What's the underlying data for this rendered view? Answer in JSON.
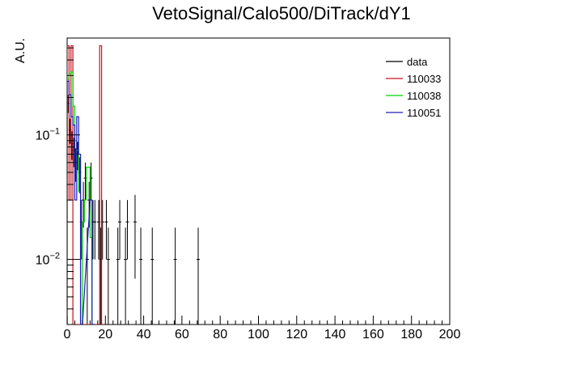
{
  "chart_data": {
    "type": "histogram",
    "title": "VetoSignal/Calo500/DiTrack/dY1",
    "xlabel": "",
    "ylabel": "A.U.",
    "xlim": [
      0,
      200
    ],
    "ylim": [
      0.003,
      0.6
    ],
    "yscale": "log",
    "grid": false,
    "legend_position": "top-right",
    "x_ticks": [
      0,
      20,
      40,
      60,
      80,
      100,
      120,
      140,
      160,
      180,
      200
    ],
    "x_tick_labels": [
      "0",
      "20",
      "40",
      "60",
      "80",
      "100",
      "120",
      "140",
      "160",
      "180",
      "200"
    ],
    "y_ticks": [
      0.01,
      0.1
    ],
    "y_tick_labels": [
      {
        "base": "10",
        "exp": "−2"
      },
      {
        "base": "10",
        "exp": "−1"
      }
    ],
    "series": [
      {
        "name": "data",
        "color": "#000000",
        "style": "points-with-errors",
        "points": [
          {
            "x": 0.5,
            "y": 0.18,
            "err": 0.03
          },
          {
            "x": 1.5,
            "y": 0.11,
            "err": 0.025
          },
          {
            "x": 2.5,
            "y": 0.085,
            "err": 0.022
          },
          {
            "x": 3.5,
            "y": 0.075,
            "err": 0.02
          },
          {
            "x": 4.5,
            "y": 0.06,
            "err": 0.018
          },
          {
            "x": 5.5,
            "y": 0.07,
            "err": 0.018
          },
          {
            "x": 6.5,
            "y": 0.05,
            "err": 0.016
          },
          {
            "x": 7.5,
            "y": 0.02,
            "err": 0.01
          },
          {
            "x": 8.5,
            "y": 0.03,
            "err": 0.012
          },
          {
            "x": 9.5,
            "y": 0.045,
            "err": 0.015
          },
          {
            "x": 10.5,
            "y": 0.01,
            "err": 0.008
          },
          {
            "x": 11.5,
            "y": 0.03,
            "err": 0.012
          },
          {
            "x": 12.5,
            "y": 0.045,
            "err": 0.015
          },
          {
            "x": 13.5,
            "y": 0.02,
            "err": 0.01
          },
          {
            "x": 14.5,
            "y": 0.02,
            "err": 0.01
          },
          {
            "x": 16.5,
            "y": 0.02,
            "err": 0.01
          },
          {
            "x": 17.5,
            "y": 0.01,
            "err": 0.008
          },
          {
            "x": 18.5,
            "y": 0.02,
            "err": 0.01
          },
          {
            "x": 20.5,
            "y": 0.02,
            "err": 0.01
          },
          {
            "x": 21.5,
            "y": 0.01,
            "err": 0.008
          },
          {
            "x": 26.5,
            "y": 0.01,
            "err": 0.008
          },
          {
            "x": 27.5,
            "y": 0.02,
            "err": 0.01
          },
          {
            "x": 30.5,
            "y": 0.01,
            "err": 0.008
          },
          {
            "x": 31.5,
            "y": 0.02,
            "err": 0.01
          },
          {
            "x": 35.5,
            "y": 0.02,
            "err": 0.013
          },
          {
            "x": 38.5,
            "y": 0.01,
            "err": 0.008
          },
          {
            "x": 44.5,
            "y": 0.01,
            "err": 0.008
          },
          {
            "x": 56.5,
            "y": 0.01,
            "err": 0.008
          },
          {
            "x": 68.5,
            "y": 0.01,
            "err": 0.008
          }
        ]
      },
      {
        "name": "110033",
        "color": "#c8141e",
        "style": "step",
        "bins": [
          {
            "x0": 0,
            "x1": 1,
            "y": 0.52
          },
          {
            "x0": 1,
            "x1": 2,
            "y": 0.03
          },
          {
            "x0": 2,
            "x1": 3,
            "y": 0.52
          },
          {
            "x0": 3,
            "x1": 17,
            "y": 0.003
          },
          {
            "x0": 17,
            "x1": 18,
            "y": 0.52
          },
          {
            "x0": 18,
            "x1": 19,
            "y": 0.003
          }
        ]
      },
      {
        "name": "110038",
        "color": "#00d200",
        "style": "step",
        "bins": [
          {
            "x0": 0,
            "x1": 1,
            "y": 0.28
          },
          {
            "x0": 1,
            "x1": 2,
            "y": 0.31
          },
          {
            "x0": 2,
            "x1": 3,
            "y": 0.32
          },
          {
            "x0": 3,
            "x1": 4,
            "y": 0.17
          },
          {
            "x0": 4,
            "x1": 5,
            "y": 0.09
          },
          {
            "x0": 5,
            "x1": 6,
            "y": 0.075
          },
          {
            "x0": 6,
            "x1": 7,
            "y": 0.035
          },
          {
            "x0": 7,
            "x1": 8,
            "y": 0.003
          },
          {
            "x0": 8,
            "x1": 9,
            "y": 0.02
          },
          {
            "x0": 9,
            "x1": 10,
            "y": 0.03
          },
          {
            "x0": 10,
            "x1": 11,
            "y": 0.055
          },
          {
            "x0": 11,
            "x1": 12,
            "y": 0.055
          },
          {
            "x0": 12,
            "x1": 13,
            "y": 0.015
          },
          {
            "x0": 13,
            "x1": 14,
            "y": 0.003
          }
        ]
      },
      {
        "name": "110051",
        "color": "#1e1ebe",
        "style": "step",
        "bins": [
          {
            "x0": 0,
            "x1": 1,
            "y": 0.27
          },
          {
            "x0": 1,
            "x1": 2,
            "y": 0.21
          },
          {
            "x0": 2,
            "x1": 3,
            "y": 0.14
          },
          {
            "x0": 3,
            "x1": 4,
            "y": 0.12
          },
          {
            "x0": 4,
            "x1": 5,
            "y": 0.03
          },
          {
            "x0": 5,
            "x1": 6,
            "y": 0.14
          },
          {
            "x0": 6,
            "x1": 7,
            "y": 0.07
          },
          {
            "x0": 7,
            "x1": 8,
            "y": 0.003
          },
          {
            "x0": 12,
            "x1": 13,
            "y": 0.03
          },
          {
            "x0": 13,
            "x1": 14,
            "y": 0.003
          }
        ]
      }
    ]
  }
}
